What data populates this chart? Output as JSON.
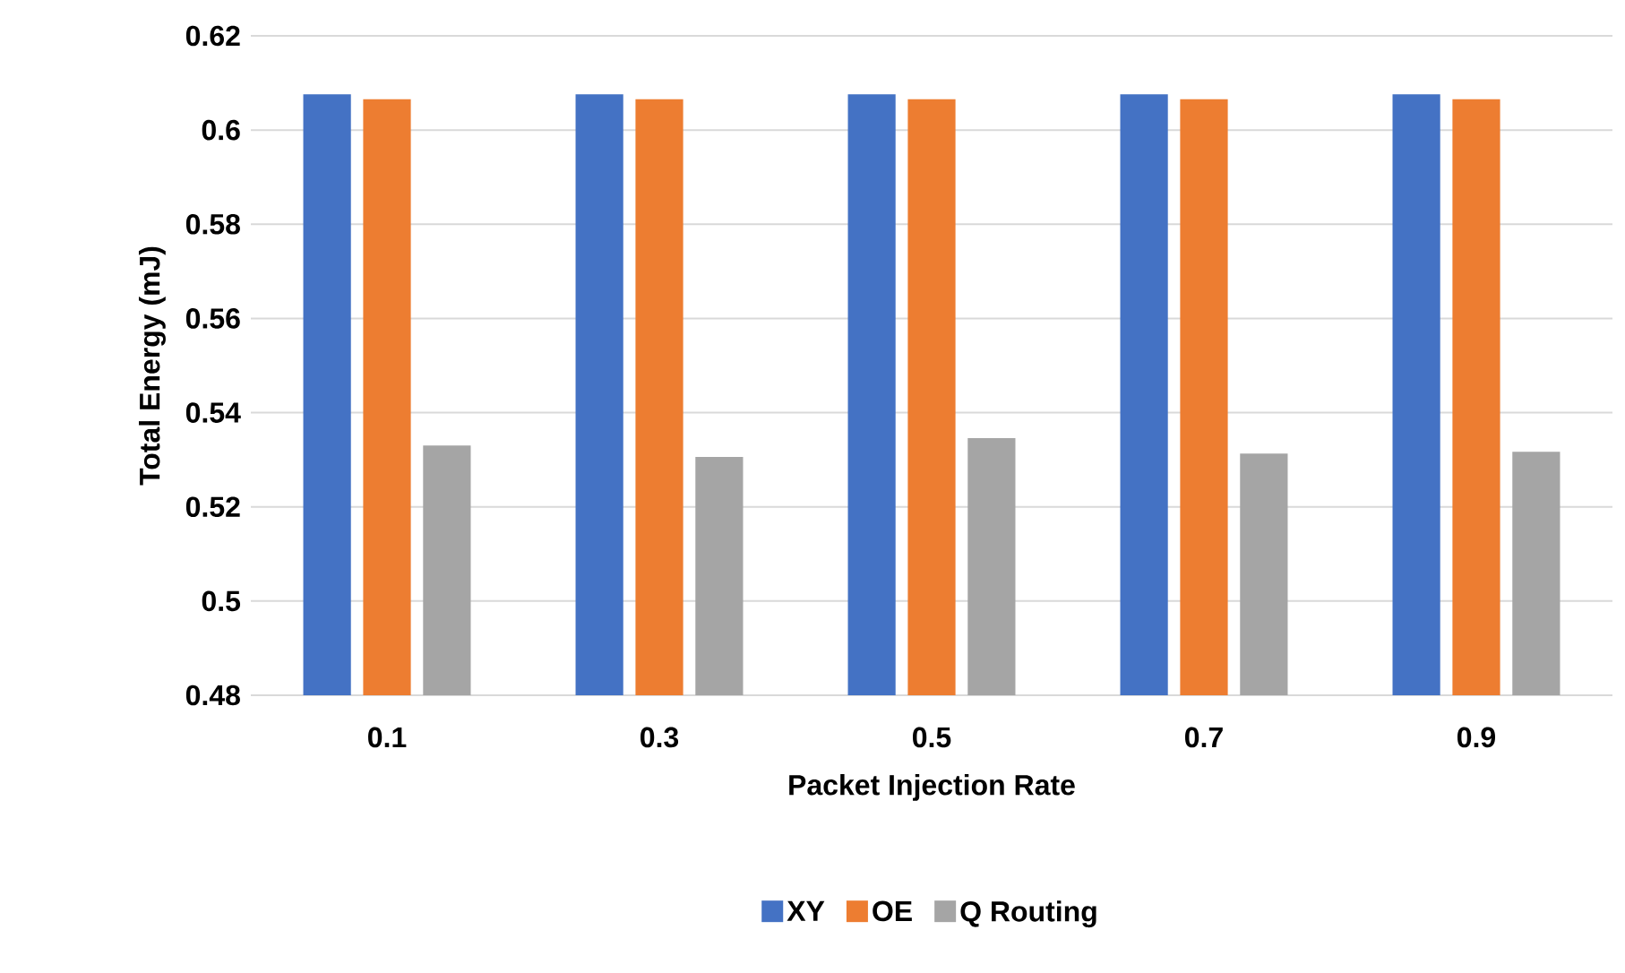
{
  "chart_data": {
    "type": "bar",
    "xlabel": "Packet Injection Rate",
    "ylabel": "Total Energy (mJ)",
    "categories": [
      "0.1",
      "0.3",
      "0.5",
      "0.7",
      "0.9"
    ],
    "series": [
      {
        "name": "XY",
        "color": "#4472c4",
        "values": [
          0.6076,
          0.6076,
          0.6076,
          0.6076,
          0.6076
        ]
      },
      {
        "name": "OE",
        "color": "#ed7d31",
        "values": [
          0.6066,
          0.6066,
          0.6066,
          0.6066,
          0.6066
        ]
      },
      {
        "name": "Q Routing",
        "color": "#a5a5a5",
        "values": [
          0.533,
          0.5306,
          0.5346,
          0.5313,
          0.5317
        ]
      }
    ],
    "ylim": [
      0.48,
      0.62
    ],
    "yticks": [
      0.48,
      0.5,
      0.52,
      0.54,
      0.56,
      0.58,
      0.6,
      0.62
    ],
    "grid": "y",
    "legend": "bottom"
  }
}
